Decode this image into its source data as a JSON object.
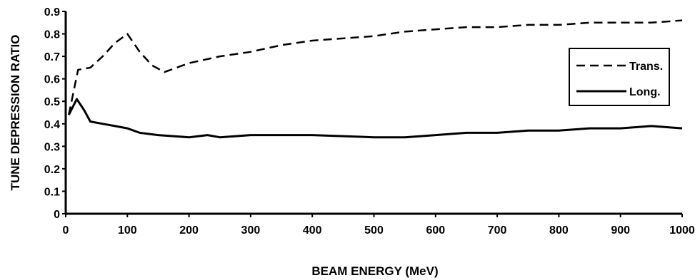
{
  "chart_data": {
    "type": "line",
    "xlabel": "BEAM ENERGY (MeV)",
    "ylabel": "TUNE DEPRESSION RATIO",
    "xlim": [
      0,
      1000
    ],
    "ylim": [
      0,
      0.9
    ],
    "x_ticks": [
      "0",
      "100",
      "200",
      "300",
      "400",
      "500",
      "600",
      "700",
      "800",
      "900",
      "1000"
    ],
    "y_ticks": [
      "0",
      "0.1",
      "0.2",
      "0.3",
      "0.4",
      "0.5",
      "0.6",
      "0.7",
      "0.8",
      "0.9"
    ],
    "grid": false,
    "legend_position": "right",
    "series": [
      {
        "name": "Trans.",
        "style": "dashed",
        "color": "#000000",
        "x": [
          5,
          20,
          40,
          60,
          80,
          100,
          120,
          140,
          160,
          200,
          250,
          300,
          350,
          400,
          450,
          500,
          550,
          600,
          650,
          700,
          750,
          800,
          850,
          900,
          950,
          1000
        ],
        "y": [
          0.44,
          0.64,
          0.65,
          0.7,
          0.76,
          0.8,
          0.72,
          0.66,
          0.63,
          0.67,
          0.7,
          0.72,
          0.75,
          0.77,
          0.78,
          0.79,
          0.81,
          0.82,
          0.83,
          0.83,
          0.84,
          0.84,
          0.85,
          0.85,
          0.85,
          0.86
        ]
      },
      {
        "name": "Long.",
        "style": "solid",
        "color": "#000000",
        "x": [
          5,
          18,
          30,
          40,
          60,
          80,
          100,
          120,
          150,
          200,
          230,
          250,
          300,
          350,
          400,
          450,
          500,
          550,
          600,
          650,
          700,
          750,
          800,
          850,
          900,
          950,
          1000
        ],
        "y": [
          0.44,
          0.51,
          0.46,
          0.41,
          0.4,
          0.39,
          0.38,
          0.36,
          0.35,
          0.34,
          0.35,
          0.34,
          0.35,
          0.35,
          0.35,
          0.345,
          0.34,
          0.34,
          0.35,
          0.36,
          0.36,
          0.37,
          0.37,
          0.38,
          0.38,
          0.39,
          0.38
        ]
      }
    ]
  }
}
